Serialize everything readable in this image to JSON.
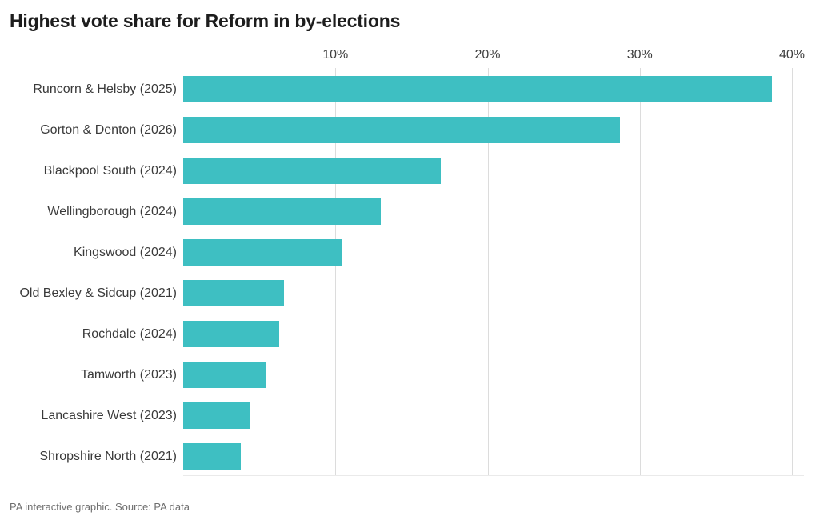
{
  "title": "Highest vote share for Reform in by-elections",
  "footer": "PA interactive graphic. Source: PA data",
  "colors": {
    "background": "#ffffff",
    "bar": "#3ebfc2",
    "gridline": "#dcdcdc",
    "baseline": "#eaeaea",
    "title_text": "#1d1d1d",
    "category_text": "#3a3a3a",
    "tick_text": "#3f3f3f",
    "footer_text": "#6f6f6f"
  },
  "chart_data": {
    "type": "bar",
    "orientation": "horizontal",
    "title": "Highest vote share for Reform in by-elections",
    "categories": [
      "Runcorn & Helsby (2025)",
      "Gorton & Denton (2026)",
      "Blackpool South (2024)",
      "Wellingborough (2024)",
      "Kingswood (2024)",
      "Old Bexley & Sidcup (2021)",
      "Rochdale (2024)",
      "Tamworth (2023)",
      "Lancashire West (2023)",
      "Shropshire North (2021)"
    ],
    "values": [
      38.7,
      28.7,
      16.9,
      13.0,
      10.4,
      6.6,
      6.3,
      5.4,
      4.4,
      3.8
    ],
    "unit": "%",
    "xlabel": "",
    "ylabel": "",
    "xlim": [
      0,
      40
    ],
    "x_tick_values": [
      10,
      20,
      30,
      40
    ],
    "x_tick_labels": [
      "10%",
      "20%",
      "30%",
      "40%"
    ],
    "grid": "vertical-gridlines-behind-bars",
    "legend": "none",
    "source_note": "PA interactive graphic. Source: PA data"
  }
}
